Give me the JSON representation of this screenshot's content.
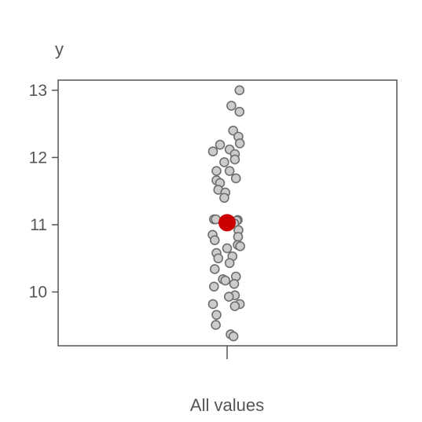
{
  "chart_data": {
    "type": "scatter",
    "title": "",
    "xlabel": "All values",
    "ylabel": "y",
    "categories": [
      "All values"
    ],
    "ylim": [
      9.2,
      13.15
    ],
    "yticks": [
      10,
      11,
      12,
      13
    ],
    "grid": false,
    "legend": "none",
    "colors": {
      "points_fill": "#cccccc",
      "points_stroke": "#6e6e6e",
      "summary": "#cc0000",
      "axis": "#555555",
      "text": "#555555"
    },
    "series": [
      {
        "category": "All values",
        "points": [
          {
            "jitter": 0.35,
            "y": 13.0
          },
          {
            "jitter": 0.12,
            "y": 12.77
          },
          {
            "jitter": 0.35,
            "y": 12.68
          },
          {
            "jitter": 0.17,
            "y": 12.4
          },
          {
            "jitter": 0.32,
            "y": 12.31
          },
          {
            "jitter": 0.36,
            "y": 12.21
          },
          {
            "jitter": -0.2,
            "y": 12.19
          },
          {
            "jitter": 0.07,
            "y": 12.12
          },
          {
            "jitter": -0.4,
            "y": 12.09
          },
          {
            "jitter": 0.22,
            "y": 12.05
          },
          {
            "jitter": 0.22,
            "y": 11.97
          },
          {
            "jitter": -0.08,
            "y": 11.93
          },
          {
            "jitter": -0.3,
            "y": 11.8
          },
          {
            "jitter": 0.07,
            "y": 11.8
          },
          {
            "jitter": 0.25,
            "y": 11.69
          },
          {
            "jitter": -0.3,
            "y": 11.66
          },
          {
            "jitter": -0.2,
            "y": 11.62
          },
          {
            "jitter": -0.25,
            "y": 11.52
          },
          {
            "jitter": -0.05,
            "y": 11.48
          },
          {
            "jitter": -0.08,
            "y": 11.4
          },
          {
            "jitter": -0.37,
            "y": 11.08
          },
          {
            "jitter": -0.32,
            "y": 11.08
          },
          {
            "jitter": 0.3,
            "y": 11.07
          },
          {
            "jitter": 0.27,
            "y": 11.06
          },
          {
            "jitter": 0.2,
            "y": 11.02
          },
          {
            "jitter": 0.32,
            "y": 10.92
          },
          {
            "jitter": -0.41,
            "y": 10.85
          },
          {
            "jitter": 0.31,
            "y": 10.82
          },
          {
            "jitter": -0.35,
            "y": 10.77
          },
          {
            "jitter": 0.3,
            "y": 10.7
          },
          {
            "jitter": 0.37,
            "y": 10.68
          },
          {
            "jitter": 0.0,
            "y": 10.65
          },
          {
            "jitter": -0.3,
            "y": 10.58
          },
          {
            "jitter": 0.15,
            "y": 10.53
          },
          {
            "jitter": -0.25,
            "y": 10.5
          },
          {
            "jitter": 0.07,
            "y": 10.43
          },
          {
            "jitter": -0.35,
            "y": 10.34
          },
          {
            "jitter": 0.25,
            "y": 10.23
          },
          {
            "jitter": -0.12,
            "y": 10.19
          },
          {
            "jitter": -0.05,
            "y": 10.17
          },
          {
            "jitter": 0.2,
            "y": 10.12
          },
          {
            "jitter": -0.37,
            "y": 10.08
          },
          {
            "jitter": 0.22,
            "y": 9.95
          },
          {
            "jitter": 0.05,
            "y": 9.93
          },
          {
            "jitter": -0.4,
            "y": 9.82
          },
          {
            "jitter": 0.36,
            "y": 9.82
          },
          {
            "jitter": 0.22,
            "y": 9.79
          },
          {
            "jitter": -0.3,
            "y": 9.66
          },
          {
            "jitter": -0.32,
            "y": 9.51
          },
          {
            "jitter": 0.1,
            "y": 9.37
          },
          {
            "jitter": 0.18,
            "y": 9.34
          }
        ],
        "summary": {
          "y": 11.03
        }
      }
    ]
  }
}
